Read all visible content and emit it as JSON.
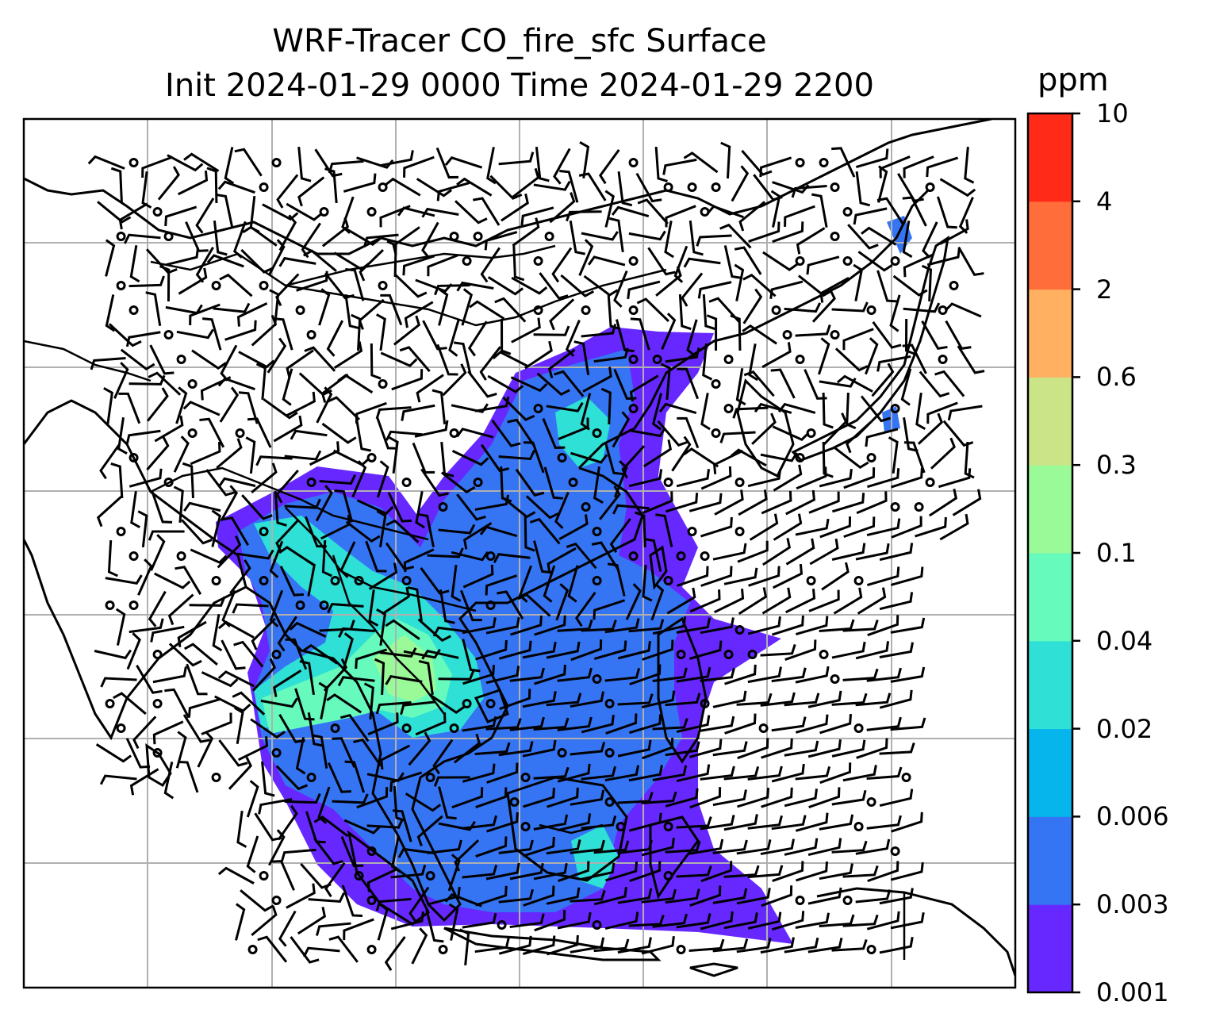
{
  "title": {
    "line1": "WRF-Tracer CO_fire_sfc Surface",
    "line2": "Init 2024-01-29 0000 Time 2024-01-29 2200"
  },
  "colorbar": {
    "unit": "ppm",
    "levels": [
      "0.001",
      "0.003",
      "0.006",
      "0.02",
      "0.04",
      "0.1",
      "0.3",
      "0.6",
      "2",
      "4",
      "10"
    ],
    "colors": [
      "#6628ff",
      "#3575f4",
      "#05b5ec",
      "#2ee0d6",
      "#66fabd",
      "#9afa97",
      "#cce488",
      "#ffb060",
      "#ff6e3a",
      "#ff2a17"
    ]
  },
  "map": {
    "field": "CO_fire_sfc",
    "level": "Surface",
    "overlays": [
      "coastlines",
      "country-borders",
      "gridlines",
      "wind-barbs"
    ]
  }
}
